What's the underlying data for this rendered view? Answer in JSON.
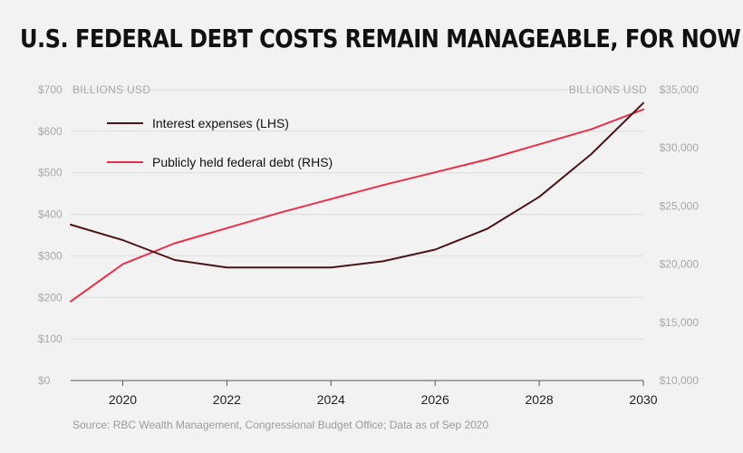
{
  "title": "U.S. FEDERAL DEBT COSTS REMAIN MANAGEABLE, FOR NOW",
  "source": "Source: RBC Wealth Management, Congressional Budget Office; Data as of Sep 2020",
  "chart_data": {
    "type": "line",
    "title": "U.S. FEDERAL DEBT COSTS REMAIN MANAGEABLE, FOR NOW",
    "x": [
      2019,
      2020,
      2021,
      2022,
      2023,
      2024,
      2025,
      2026,
      2027,
      2028,
      2029,
      2030
    ],
    "x_ticks": [
      "2020",
      "2022",
      "2024",
      "2026",
      "2028",
      "2030"
    ],
    "left_axis": {
      "unit_label": "BILLIONS USD",
      "ylim": [
        0,
        700
      ],
      "ticks": [
        "$0",
        "$100",
        "$200",
        "$300",
        "$400",
        "$500",
        "$600",
        "$700"
      ]
    },
    "right_axis": {
      "unit_label": "BILLIONS USD",
      "ylim": [
        10000,
        35000
      ],
      "ticks": [
        "$10,000",
        "$15,000",
        "$20,000",
        "$25,000",
        "$30,000",
        "$35,000"
      ]
    },
    "series": [
      {
        "name": "Interest expenses (LHS)",
        "axis": "left",
        "color": "#4a1419",
        "values": [
          375,
          338,
          290,
          272,
          272,
          272,
          287,
          315,
          365,
          442,
          545,
          668
        ]
      },
      {
        "name": "Publicly held federal debt (RHS)",
        "axis": "right",
        "color": "#e8304a",
        "values": [
          16800,
          20000,
          21800,
          23100,
          24400,
          25600,
          26800,
          27900,
          29000,
          30300,
          31600,
          33300
        ]
      }
    ],
    "grid": true,
    "legend_position": "top-left"
  }
}
